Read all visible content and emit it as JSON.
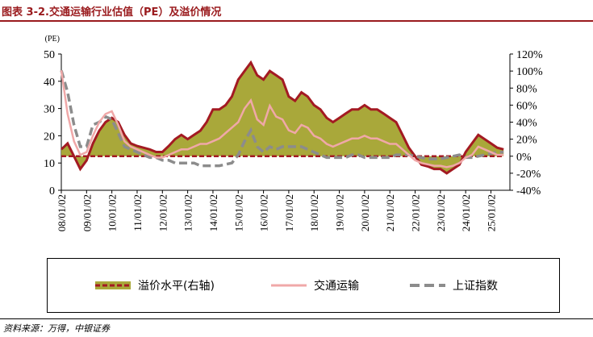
{
  "header": {
    "title": "图表 3-2.交通运输行业估值（PE）及溢价情况"
  },
  "source": "资料来源：万得，中银证券",
  "colors": {
    "premium_fill": "#a9a83a",
    "premium_edge": "#a31a22",
    "transport": "#f0a8a8",
    "index": "#8c8c8c",
    "title": "#9a1b1e"
  },
  "chart_data": {
    "type": "area",
    "ylabel_left": "(PE)",
    "ylim_left": [
      0,
      50
    ],
    "yticks_left": [
      "0",
      "10",
      "20",
      "30",
      "40",
      "50"
    ],
    "ylim_right": [
      -40,
      120
    ],
    "yticks_right": [
      "-40%",
      "-20%",
      "0%",
      "20%",
      "40%",
      "60%",
      "80%",
      "100%",
      "120%"
    ],
    "xticks": [
      "08/01/02",
      "09/01/02",
      "10/01/02",
      "11/01/02",
      "12/01/02",
      "13/01/02",
      "14/01/02",
      "15/01/02",
      "16/01/02",
      "17/01/02",
      "18/01/02",
      "19/01/02",
      "20/01/02",
      "21/01/02",
      "22/01/02",
      "23/01/02",
      "24/01/02",
      "25/01/02"
    ],
    "x": [
      "2008-01",
      "2008-04",
      "2008-07",
      "2008-10",
      "2009-01",
      "2009-04",
      "2009-07",
      "2009-10",
      "2010-01",
      "2010-04",
      "2010-07",
      "2010-10",
      "2011-01",
      "2011-04",
      "2011-07",
      "2011-10",
      "2012-01",
      "2012-04",
      "2012-07",
      "2012-10",
      "2013-01",
      "2013-04",
      "2013-07",
      "2013-10",
      "2014-01",
      "2014-04",
      "2014-07",
      "2014-10",
      "2015-01",
      "2015-04",
      "2015-07",
      "2015-10",
      "2016-01",
      "2016-04",
      "2016-07",
      "2016-10",
      "2017-01",
      "2017-04",
      "2017-07",
      "2017-10",
      "2018-01",
      "2018-04",
      "2018-07",
      "2018-10",
      "2019-01",
      "2019-04",
      "2019-07",
      "2019-10",
      "2020-01",
      "2020-04",
      "2020-07",
      "2020-10",
      "2021-01",
      "2021-04",
      "2021-07",
      "2021-10",
      "2022-01",
      "2022-04",
      "2022-07",
      "2022-10",
      "2023-01",
      "2023-04",
      "2023-07",
      "2023-10",
      "2024-01",
      "2024-04",
      "2024-07",
      "2024-10",
      "2025-01",
      "2025-04",
      "2025-07"
    ],
    "series": [
      {
        "name": "溢价水平(右轴)",
        "axis": "right",
        "unit": "%",
        "values": [
          8,
          15,
          0,
          -15,
          -5,
          15,
          30,
          40,
          45,
          40,
          25,
          15,
          12,
          10,
          8,
          5,
          5,
          12,
          20,
          25,
          20,
          25,
          30,
          40,
          55,
          55,
          60,
          70,
          90,
          100,
          110,
          95,
          90,
          100,
          95,
          90,
          70,
          65,
          75,
          70,
          60,
          55,
          45,
          40,
          45,
          50,
          55,
          55,
          60,
          55,
          55,
          50,
          45,
          40,
          25,
          10,
          0,
          -10,
          -12,
          -15,
          -15,
          -20,
          -15,
          -10,
          5,
          15,
          25,
          20,
          15,
          10,
          8
        ]
      },
      {
        "name": "交通运输",
        "axis": "left",
        "values": [
          44,
          28,
          18,
          13,
          14,
          20,
          25,
          28,
          29,
          24,
          18,
          16,
          15,
          14,
          13,
          12,
          12,
          13,
          14,
          15,
          15,
          16,
          17,
          17,
          18,
          19,
          21,
          23,
          25,
          30,
          33,
          26,
          24,
          31,
          27,
          26,
          22,
          21,
          24,
          23,
          20,
          19,
          17,
          16,
          17,
          18,
          19,
          19,
          20,
          19,
          19,
          18,
          17,
          17,
          15,
          13,
          11,
          10,
          9.5,
          9,
          9,
          8.5,
          9,
          10,
          12,
          13,
          16,
          15,
          14,
          13,
          13
        ]
      },
      {
        "name": "上证指数",
        "axis": "left",
        "values": [
          44,
          36,
          24,
          16,
          16,
          24,
          25,
          27,
          26,
          21,
          16,
          15,
          14,
          13,
          12,
          12,
          11,
          11,
          10,
          10,
          10,
          10,
          9,
          9,
          9,
          9,
          9.5,
          10,
          13,
          18,
          22,
          16,
          14,
          16,
          15,
          16,
          16,
          16,
          16,
          15,
          14,
          13,
          12,
          12,
          12,
          12,
          13,
          13,
          12,
          12,
          12,
          12,
          12,
          13,
          13,
          13,
          12.5,
          12,
          11.5,
          11.5,
          11.5,
          12,
          12.5,
          13,
          12,
          12,
          12.5,
          13,
          13.5,
          14,
          14
        ]
      }
    ],
    "legend": [
      "溢价水平(右轴)",
      "交通运输",
      "上证指数"
    ],
    "legend_position": "bottom",
    "grid": false
  }
}
